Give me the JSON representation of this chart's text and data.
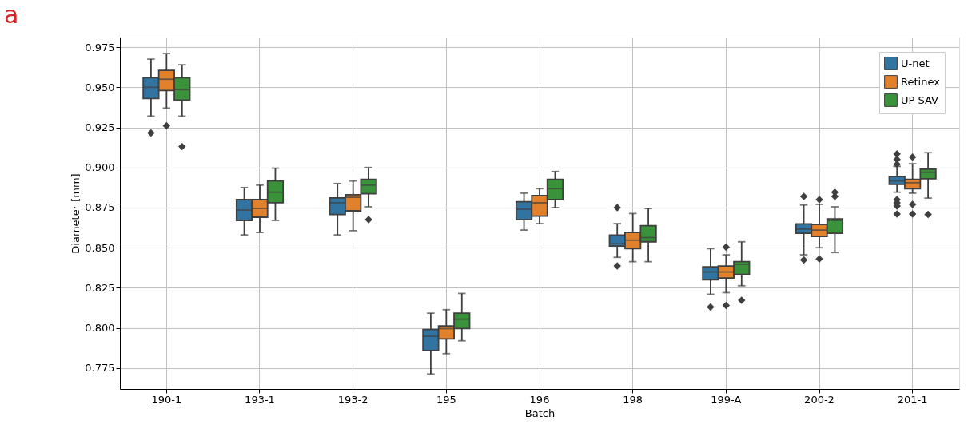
{
  "chart_data": {
    "type": "box",
    "title": "a",
    "xlabel": "Batch",
    "ylabel": "Diameter [mm]",
    "categories": [
      "190-1",
      "193-1",
      "193-2",
      "195",
      "196",
      "198",
      "199-A",
      "200-2",
      "201-1"
    ],
    "ylim": [
      0.762,
      0.981
    ],
    "yticks": [
      0.775,
      {
        "value": 0.8,
        "label": "0.800"
      },
      0.825,
      {
        "value": 0.85,
        "label": "0.850"
      },
      0.875,
      {
        "value": 0.9,
        "label": "0.900"
      },
      0.925,
      {
        "value": 0.95,
        "label": "0.950"
      },
      0.975
    ],
    "grid": true,
    "legend": "top right",
    "marker": "diamond",
    "series": [
      {
        "name": "U-net",
        "color": "#3274a1",
        "boxes": [
          {
            "low": 0.932,
            "q1": 0.943,
            "median": 0.95,
            "q3": 0.956,
            "high": 0.9675,
            "outliers": [
              0.9215
            ]
          },
          {
            "low": 0.858,
            "q1": 0.867,
            "median": 0.8735,
            "q3": 0.88,
            "high": 0.8875
          },
          {
            "low": 0.858,
            "q1": 0.8707,
            "median": 0.878,
            "q3": 0.881,
            "high": 0.89
          },
          {
            "low": 0.7713,
            "q1": 0.786,
            "median": 0.7948,
            "q3": 0.799,
            "high": 0.8092
          },
          {
            "low": 0.861,
            "q1": 0.8675,
            "median": 0.874,
            "q3": 0.8787,
            "high": 0.884
          },
          {
            "low": 0.844,
            "q1": 0.851,
            "median": 0.8525,
            "q3": 0.8579,
            "high": 0.865,
            "outliers": [
              0.875,
              0.8386
            ]
          },
          {
            "low": 0.821,
            "q1": 0.83,
            "median": 0.8349,
            "q3": 0.8381,
            "high": 0.8494,
            "outliers": [
              0.813
            ]
          },
          {
            "low": 0.8456,
            "q1": 0.859,
            "median": 0.8616,
            "q3": 0.8648,
            "high": 0.8766,
            "outliers": [
              0.882,
              0.8424
            ]
          },
          {
            "low": 0.8846,
            "q1": 0.8895,
            "median": 0.8916,
            "q3": 0.8943,
            "high": 0.9007,
            "outliers": [
              0.9085,
              0.905,
              0.902,
              0.88,
              0.878,
              0.876,
              0.871
            ]
          }
        ]
      },
      {
        "name": "Retinex",
        "color": "#e1812c",
        "boxes": [
          {
            "low": 0.937,
            "q1": 0.948,
            "median": 0.955,
            "q3": 0.9605,
            "high": 0.971,
            "outliers": [
              0.926
            ]
          },
          {
            "low": 0.8595,
            "q1": 0.869,
            "median": 0.8745,
            "q3": 0.88,
            "high": 0.889
          },
          {
            "low": 0.8606,
            "q1": 0.873,
            "median": 0.8814,
            "q3": 0.883,
            "high": 0.8916
          },
          {
            "low": 0.784,
            "q1": 0.7932,
            "median": 0.7996,
            "q3": 0.8012,
            "high": 0.8114
          },
          {
            "low": 0.865,
            "q1": 0.8697,
            "median": 0.878,
            "q3": 0.8825,
            "high": 0.8868
          },
          {
            "low": 0.8413,
            "q1": 0.8494,
            "median": 0.8547,
            "q3": 0.8595,
            "high": 0.8713
          },
          {
            "low": 0.822,
            "q1": 0.8311,
            "median": 0.8349,
            "q3": 0.8386,
            "high": 0.8456,
            "outliers": [
              0.8504,
              0.814
            ]
          },
          {
            "low": 0.85,
            "q1": 0.857,
            "median": 0.861,
            "q3": 0.8645,
            "high": 0.877,
            "outliers": [
              0.88,
              0.843
            ]
          },
          {
            "low": 0.884,
            "q1": 0.8868,
            "median": 0.8905,
            "q3": 0.8926,
            "high": 0.9023,
            "outliers": [
              0.9065,
              0.877,
              0.871
            ]
          }
        ]
      },
      {
        "name": "UP SAV",
        "color": "#3a923a",
        "boxes": [
          {
            "low": 0.932,
            "q1": 0.942,
            "median": 0.9485,
            "q3": 0.956,
            "high": 0.964,
            "outliers": [
              0.913
            ]
          },
          {
            "low": 0.867,
            "q1": 0.878,
            "median": 0.8846,
            "q3": 0.8916,
            "high": 0.8996
          },
          {
            "low": 0.8755,
            "q1": 0.8836,
            "median": 0.889,
            "q3": 0.8926,
            "high": 0.9,
            "outliers": [
              0.8675
            ]
          },
          {
            "low": 0.792,
            "q1": 0.7996,
            "median": 0.8055,
            "q3": 0.8092,
            "high": 0.8215
          },
          {
            "low": 0.875,
            "q1": 0.88,
            "median": 0.8868,
            "q3": 0.8926,
            "high": 0.8975
          },
          {
            "low": 0.8413,
            "q1": 0.8537,
            "median": 0.8563,
            "q3": 0.8637,
            "high": 0.8744
          },
          {
            "low": 0.8263,
            "q1": 0.8333,
            "median": 0.8397,
            "q3": 0.8413,
            "high": 0.8537,
            "outliers": [
              0.8172
            ]
          },
          {
            "low": 0.847,
            "q1": 0.859,
            "median": 0.867,
            "q3": 0.868,
            "high": 0.8755,
            "outliers": [
              0.8846,
              0.882
            ]
          },
          {
            "low": 0.8809,
            "q1": 0.893,
            "median": 0.897,
            "q3": 0.899,
            "high": 0.9092,
            "outliers": [
              0.8707
            ]
          }
        ]
      }
    ]
  }
}
